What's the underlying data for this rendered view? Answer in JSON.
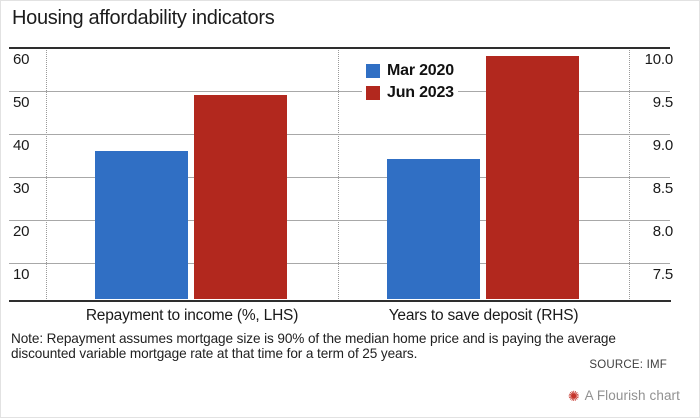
{
  "title": "Housing affordability indicators",
  "chart_data": {
    "type": "bar",
    "title": "Housing affordability indicators",
    "categories": [
      "Repayment to income (%, LHS)",
      "Years to save deposit (RHS)"
    ],
    "series": [
      {
        "name": "Mar 2020",
        "color": "#306fc4",
        "values": [
          36,
          8.7
        ]
      },
      {
        "name": "Jun 2023",
        "color": "#b2281e",
        "values": [
          49,
          9.9
        ]
      }
    ],
    "category_axis_map": [
      "LHS",
      "RHS"
    ],
    "left_axis": {
      "ticks": [
        "60",
        "50",
        "40",
        "30",
        "20",
        "10"
      ],
      "top_value": 60,
      "units_per_row": 10
    },
    "right_axis": {
      "ticks": [
        "10.0",
        "9.5",
        "9.0",
        "8.5",
        "8.0",
        "7.5"
      ],
      "top_value": 10,
      "units_per_row": 0.5
    },
    "grid": true,
    "legend_position": "top-center"
  },
  "footer": {
    "note_line1": "Note: Repayment assumes mortgage size is 90% of the median home price and is paying the average",
    "note_line2": "discounted variable mortgage rate at that time for a term of 25 years.",
    "source": "SOURCE: IMF",
    "flourish_label": "A Flourish chart",
    "flourish_icon_glyph": "✺",
    "flourish_icon_color": "#c5342b"
  }
}
